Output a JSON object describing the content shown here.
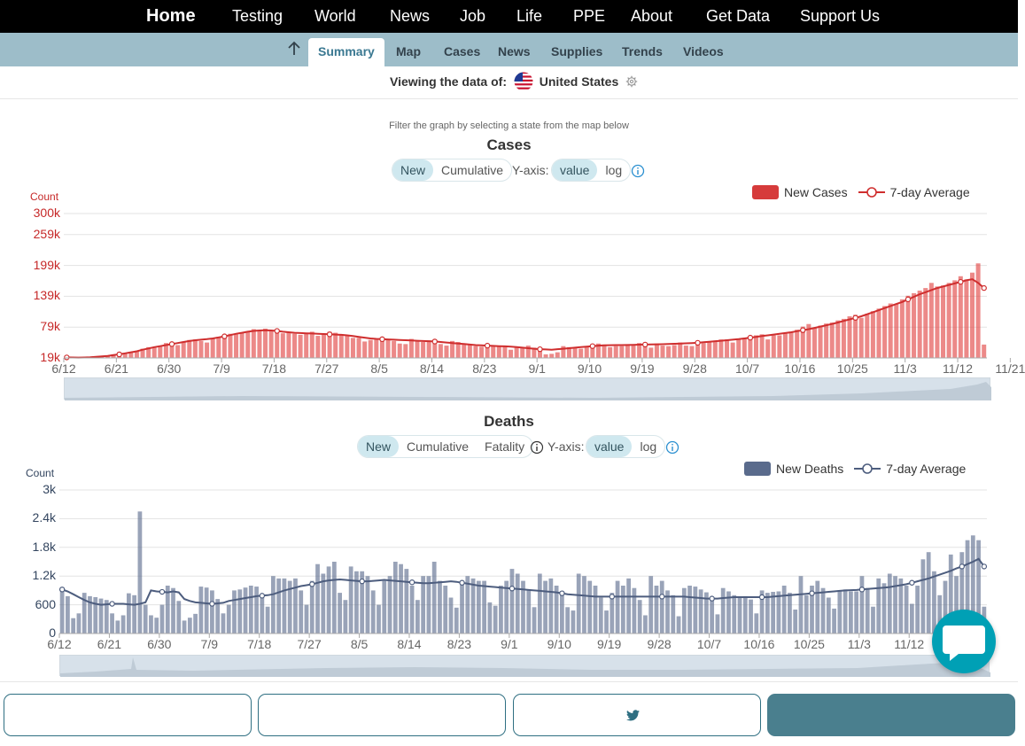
{
  "nav": {
    "items": [
      "Home",
      "Testing",
      "World",
      "News",
      "Job",
      "Life",
      "PPE",
      "About",
      "Get Data",
      "Support Us"
    ]
  },
  "subnav": {
    "tabs": [
      "Summary",
      "Map",
      "Cases",
      "News",
      "Supplies",
      "Trends",
      "Videos"
    ],
    "active": "Summary"
  },
  "viewing": {
    "label": "Viewing the data of:",
    "country": "United States"
  },
  "filter_hint": "Filter the graph by selecting a state from the map below",
  "cases_controls": {
    "mode_options": [
      "New",
      "Cumulative"
    ],
    "selected_mode": "New",
    "yaxis_label": "Y-axis:",
    "scale_options": [
      "value",
      "log"
    ],
    "selected_scale": "value"
  },
  "deaths_controls": {
    "mode_options": [
      "New",
      "Cumulative",
      "Fatality"
    ],
    "selected_mode": "New",
    "yaxis_label": "Y-axis:",
    "scale_options": [
      "value",
      "log"
    ],
    "selected_scale": "value"
  },
  "colors": {
    "cases_bar": "#e0403f",
    "cases_line": "#cf2e2e",
    "deaths_bar": "#5a6b8c",
    "deaths_line": "#4d5d7e",
    "accent": "#3a7891"
  },
  "chart_data": [
    {
      "type": "bar",
      "title": "Cases",
      "ylabel": "Count",
      "x_start": "2020-06-12",
      "x_end": "2020-11-22",
      "ylim": [
        19000,
        300000
      ],
      "yticks": [
        19000,
        79000,
        139000,
        199000,
        259000,
        300000
      ],
      "ytick_labels": [
        "19k",
        "79k",
        "139k",
        "199k",
        "259k",
        "300k"
      ],
      "xtick_labels": [
        "6/12",
        "6/21",
        "6/30",
        "7/9",
        "7/18",
        "7/27",
        "8/5",
        "8/14",
        "8/23",
        "9/1",
        "9/10",
        "9/19",
        "9/28",
        "10/7",
        "10/16",
        "10/25",
        "11/3",
        "11/12",
        "11/21"
      ],
      "grid": true,
      "legend_position": "top-right",
      "series": [
        {
          "name": "New Cases",
          "kind": "bar",
          "values": [
            21000,
            19000,
            19000,
            18000,
            20000,
            22000,
            22000,
            24000,
            26000,
            25000,
            28000,
            31000,
            33000,
            37000,
            40000,
            40000,
            42000,
            48000,
            46000,
            44000,
            51000,
            54000,
            55000,
            52000,
            49000,
            57000,
            60000,
            62000,
            66000,
            65000,
            68000,
            71000,
            75000,
            73000,
            76000,
            72000,
            70000,
            67000,
            69000,
            66000,
            64000,
            67000,
            70000,
            62000,
            66000,
            70000,
            68000,
            65000,
            62000,
            58000,
            58000,
            51000,
            54000,
            55000,
            57000,
            55000,
            52000,
            47000,
            46000,
            56000,
            52000,
            50000,
            53000,
            49000,
            46000,
            43000,
            52000,
            50000,
            47000,
            44000,
            42000,
            41000,
            46000,
            43000,
            42000,
            41000,
            35000,
            40000,
            38000,
            43000,
            39000,
            34000,
            26000,
            27000,
            30000,
            42000,
            40000,
            39000,
            37000,
            42000,
            44000,
            47000,
            45000,
            40000,
            42000,
            42000,
            44000,
            45000,
            48000,
            44000,
            39000,
            47000,
            43000,
            42000,
            44000,
            49000,
            43000,
            42000,
            45000,
            48000,
            50000,
            52000,
            55000,
            55000,
            49000,
            56000,
            58000,
            61000,
            63000,
            65000,
            55000,
            63000,
            63000,
            67000,
            69000,
            74000,
            80000,
            85000,
            77000,
            82000,
            86000,
            88000,
            92000,
            95000,
            100000,
            103000,
            97000,
            105000,
            110000,
            115000,
            120000,
            125000,
            124000,
            133000,
            140000,
            145000,
            150000,
            155000,
            165000,
            158000,
            160000,
            165000,
            170000,
            178000,
            172000,
            185000,
            203000,
            45000
          ]
        },
        {
          "name": "7-day Average",
          "kind": "line",
          "values": [
            20000,
            19800,
            19700,
            19800,
            20200,
            21000,
            22000,
            23000,
            24500,
            26000,
            28000,
            30000,
            32000,
            35000,
            37500,
            40000,
            42000,
            44000,
            46000,
            48000,
            50000,
            52000,
            53500,
            54500,
            55500,
            57000,
            59000,
            61000,
            63500,
            66000,
            68000,
            70000,
            71500,
            72500,
            73000,
            72500,
            71500,
            70000,
            69000,
            68000,
            67500,
            67000,
            66500,
            66000,
            65500,
            65000,
            64500,
            64000,
            63000,
            61500,
            60000,
            58500,
            57000,
            56000,
            55500,
            55000,
            54500,
            54000,
            53500,
            53000,
            52500,
            52000,
            51500,
            51000,
            50000,
            49000,
            48000,
            47000,
            46000,
            45000,
            44000,
            43500,
            43000,
            42500,
            42000,
            41500,
            41000,
            40000,
            39000,
            38000,
            37000,
            36000,
            35500,
            35000,
            36000,
            37000,
            38000,
            39000,
            40000,
            41000,
            42000,
            43000,
            43500,
            43800,
            44000,
            44000,
            44200,
            44500,
            44800,
            45000,
            45200,
            45500,
            45800,
            46000,
            46500,
            47000,
            47500,
            48000,
            48500,
            49500,
            50500,
            51500,
            52500,
            53500,
            54500,
            55500,
            57000,
            58500,
            60000,
            61500,
            63000,
            64500,
            66000,
            67500,
            69000,
            71000,
            73000,
            75000,
            77500,
            80000,
            82500,
            85000,
            88000,
            91000,
            94000,
            97000,
            100000,
            104000,
            108000,
            112000,
            116000,
            120000,
            124000,
            128000,
            133000,
            138000,
            143000,
            147000,
            151000,
            155000,
            158000,
            161000,
            164000,
            167000,
            170000,
            172000,
            165000,
            155000
          ]
        }
      ]
    },
    {
      "type": "bar",
      "title": "Deaths",
      "ylabel": "Count",
      "x_start": "2020-06-12",
      "x_end": "2020-11-22",
      "ylim": [
        0,
        3000
      ],
      "yticks": [
        0,
        600,
        1200,
        1800,
        2400,
        3000
      ],
      "ytick_labels": [
        "0",
        "600",
        "1.2k",
        "1.8k",
        "2.4k",
        "3k"
      ],
      "xtick_labels": [
        "6/12",
        "6/21",
        "6/30",
        "7/9",
        "7/18",
        "7/27",
        "8/5",
        "8/14",
        "8/23",
        "9/1",
        "9/10",
        "9/19",
        "9/28",
        "10/7",
        "10/16",
        "10/25",
        "11/3",
        "11/12"
      ],
      "grid": true,
      "legend_position": "top-right",
      "series": [
        {
          "name": "New Deaths",
          "kind": "bar",
          "values": [
            900,
            780,
            320,
            420,
            850,
            780,
            760,
            730,
            700,
            420,
            270,
            380,
            840,
            800,
            2550,
            600,
            380,
            330,
            600,
            1000,
            950,
            680,
            270,
            330,
            410,
            980,
            960,
            900,
            720,
            420,
            600,
            900,
            920,
            960,
            1000,
            980,
            750,
            560,
            1200,
            1150,
            1150,
            1100,
            1150,
            900,
            600,
            1100,
            1450,
            1250,
            1400,
            1500,
            850,
            700,
            1400,
            1300,
            1300,
            1200,
            900,
            600,
            1100,
            1200,
            1500,
            1450,
            1350,
            1000,
            700,
            1200,
            1200,
            1500,
            1100,
            1000,
            750,
            540,
            1100,
            1200,
            1150,
            1100,
            1100,
            650,
            580,
            1000,
            1100,
            1350,
            1250,
            1100,
            900,
            550,
            1250,
            1100,
            1150,
            1000,
            800,
            550,
            480,
            1250,
            1200,
            1100,
            1000,
            750,
            480,
            850,
            1100,
            1000,
            1150,
            950,
            700,
            380,
            1200,
            1000,
            1100,
            900,
            800,
            360,
            950,
            1000,
            980,
            920,
            860,
            700,
            400,
            950,
            880,
            800,
            770,
            780,
            710,
            420,
            900,
            850,
            870,
            880,
            1000,
            850,
            500,
            1200,
            800,
            1000,
            1100,
            950,
            750,
            520,
            900,
            920,
            880,
            880,
            1200,
            950,
            560,
            1150,
            1050,
            1250,
            1200,
            1150,
            1000,
            620,
            1000,
            1550,
            1700,
            1300,
            800,
            1100,
            1650,
            1200,
            1700,
            1950,
            2050,
            1950,
            560
          ]
        },
        {
          "name": "7-day Average",
          "kind": "line",
          "values": [
            920,
            880,
            820,
            760,
            700,
            650,
            620,
            600,
            610,
            620,
            620,
            620,
            610,
            600,
            620,
            650,
            900,
            880,
            870,
            860,
            880,
            860,
            720,
            680,
            650,
            640,
            630,
            620,
            630,
            640,
            680,
            700,
            720,
            740,
            760,
            780,
            790,
            800,
            820,
            860,
            900,
            930,
            960,
            990,
            1010,
            1030,
            1060,
            1090,
            1110,
            1120,
            1130,
            1120,
            1110,
            1100,
            1090,
            1090,
            1100,
            1110,
            1120,
            1110,
            1100,
            1090,
            1080,
            1070,
            1060,
            1050,
            1050,
            1060,
            1070,
            1080,
            1090,
            1080,
            1060,
            1040,
            1020,
            1000,
            990,
            980,
            970,
            960,
            950,
            940,
            930,
            920,
            910,
            900,
            890,
            880,
            870,
            860,
            840,
            820,
            810,
            800,
            790,
            780,
            770,
            770,
            770,
            770,
            770,
            770,
            770,
            770,
            770,
            770,
            770,
            770,
            770,
            770,
            770,
            770,
            770,
            760,
            750,
            740,
            730,
            730,
            730,
            740,
            750,
            760,
            760,
            760,
            760,
            760,
            760,
            760,
            770,
            780,
            790,
            800,
            810,
            820,
            830,
            840,
            850,
            860,
            870,
            880,
            890,
            900,
            905,
            910,
            920,
            930,
            940,
            950,
            960,
            970,
            990,
            1010,
            1030,
            1060,
            1090,
            1120,
            1150,
            1190,
            1230,
            1270,
            1310,
            1360,
            1400,
            1450,
            1500,
            1560,
            1400
          ]
        }
      ]
    }
  ]
}
